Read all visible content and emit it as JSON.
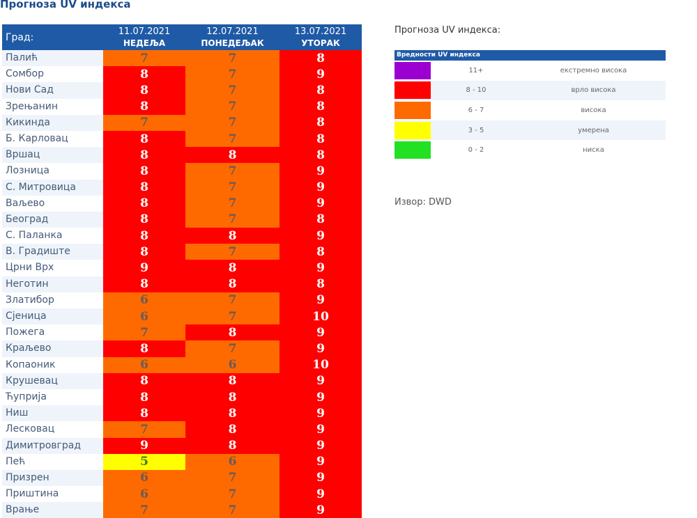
{
  "page_title": "Прогноза UV индекса",
  "table": {
    "city_header": "Град:",
    "days": [
      {
        "date": "11.07.2021",
        "day": "НЕДЕЉА"
      },
      {
        "date": "12.07.2021",
        "day": "ПОНЕДЕЉАК"
      },
      {
        "date": "13.07.2021",
        "day": "УТОРАК"
      }
    ],
    "rows": [
      {
        "city": "Палић",
        "values": [
          7,
          7,
          8
        ]
      },
      {
        "city": "Сомбор",
        "values": [
          8,
          7,
          9
        ]
      },
      {
        "city": "Нови Сад",
        "values": [
          8,
          7,
          8
        ]
      },
      {
        "city": "Зрењанин",
        "values": [
          8,
          7,
          8
        ]
      },
      {
        "city": "Кикинда",
        "values": [
          7,
          7,
          8
        ]
      },
      {
        "city": "Б. Карловац",
        "values": [
          8,
          7,
          8
        ]
      },
      {
        "city": "Вршац",
        "values": [
          8,
          8,
          8
        ]
      },
      {
        "city": "Лозница",
        "values": [
          8,
          7,
          9
        ]
      },
      {
        "city": "С. Митровица",
        "values": [
          8,
          7,
          9
        ]
      },
      {
        "city": "Ваљево",
        "values": [
          8,
          7,
          9
        ]
      },
      {
        "city": "Београд",
        "values": [
          8,
          7,
          8
        ]
      },
      {
        "city": "С. Паланка",
        "values": [
          8,
          8,
          9
        ]
      },
      {
        "city": "В. Градиште",
        "values": [
          8,
          7,
          8
        ]
      },
      {
        "city": "Црни Врх",
        "values": [
          9,
          8,
          9
        ]
      },
      {
        "city": "Неготин",
        "values": [
          8,
          8,
          8
        ]
      },
      {
        "city": "Златибор",
        "values": [
          6,
          7,
          9
        ]
      },
      {
        "city": "Сјеница",
        "values": [
          6,
          7,
          10
        ]
      },
      {
        "city": "Пожега",
        "values": [
          7,
          8,
          9
        ]
      },
      {
        "city": "Краљево",
        "values": [
          8,
          7,
          9
        ]
      },
      {
        "city": "Копаоник",
        "values": [
          6,
          6,
          10
        ]
      },
      {
        "city": "Крушевац",
        "values": [
          8,
          8,
          9
        ]
      },
      {
        "city": "Ћуприја",
        "values": [
          8,
          8,
          9
        ]
      },
      {
        "city": "Ниш",
        "values": [
          8,
          8,
          9
        ]
      },
      {
        "city": "Лесковац",
        "values": [
          7,
          8,
          9
        ]
      },
      {
        "city": "Димитровград",
        "values": [
          9,
          8,
          9
        ]
      },
      {
        "city": "Пећ",
        "values": [
          5,
          6,
          9
        ]
      },
      {
        "city": "Призрен",
        "values": [
          6,
          7,
          9
        ]
      },
      {
        "city": "Приштина",
        "values": [
          6,
          7,
          9
        ]
      },
      {
        "city": "Врање",
        "values": [
          7,
          7,
          9
        ]
      }
    ]
  },
  "legend": {
    "title": "Прогноза UV индекса:",
    "header": "Вредности UV индекса",
    "items": [
      {
        "range": "11+",
        "label": "екстремно висока",
        "color": "#9b00d0"
      },
      {
        "range": "8 - 10",
        "label": "врло висока",
        "color": "#ff0000"
      },
      {
        "range": "6 - 7",
        "label": "висока",
        "color": "#ff6a00"
      },
      {
        "range": "3 - 5",
        "label": "умерена",
        "color": "#ffff00"
      },
      {
        "range": "0 - 2",
        "label": "ниска",
        "color": "#22e022"
      }
    ]
  },
  "source": "Извор: DWD"
}
